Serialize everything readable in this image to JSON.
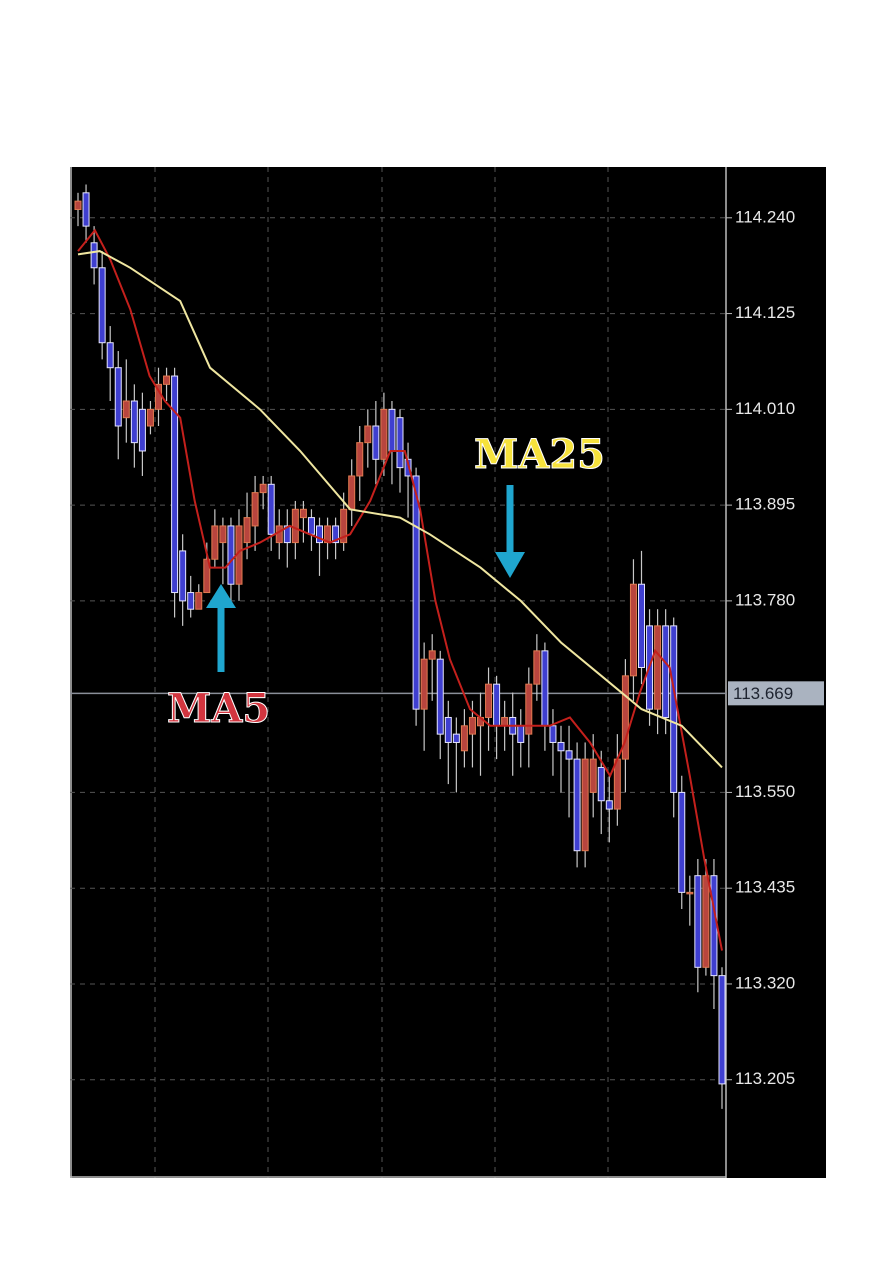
{
  "chart_data": {
    "type": "candlestick",
    "open": [
      114.25,
      114.27,
      114.21,
      114.18,
      114.09,
      114.06,
      114.0,
      114.02,
      114.01,
      113.99,
      114.01,
      114.04,
      114.05,
      113.84,
      113.79,
      113.77,
      113.79,
      113.83,
      113.85,
      113.87,
      113.8,
      113.85,
      113.87,
      113.91,
      113.92,
      113.85,
      113.87,
      113.85,
      113.88,
      113.88,
      113.87,
      113.85,
      113.87,
      113.85,
      113.89,
      113.93,
      113.97,
      113.99,
      113.95,
      114.01,
      114.0,
      113.95,
      113.93,
      113.65,
      113.71,
      113.71,
      113.64,
      113.62,
      113.6,
      113.62,
      113.63,
      113.64,
      113.68,
      113.63,
      113.64,
      113.63,
      113.62,
      113.68,
      113.72,
      113.63,
      113.61,
      113.6,
      113.59,
      113.48,
      113.55,
      113.58,
      113.54,
      113.53,
      113.59,
      113.69,
      113.8,
      113.75,
      113.65,
      113.75,
      113.75,
      113.55,
      113.43,
      113.45,
      113.34,
      113.45,
      113.33
    ],
    "high": [
      114.27,
      114.28,
      114.23,
      114.2,
      114.11,
      114.08,
      114.07,
      114.04,
      114.03,
      114.02,
      114.06,
      114.06,
      114.06,
      113.86,
      113.81,
      113.8,
      113.85,
      113.89,
      113.88,
      113.88,
      113.89,
      113.91,
      113.93,
      113.93,
      113.93,
      113.89,
      113.89,
      113.9,
      113.9,
      113.89,
      113.88,
      113.88,
      113.88,
      113.91,
      113.95,
      113.99,
      114.01,
      114.02,
      114.03,
      114.02,
      114.01,
      113.97,
      113.94,
      113.73,
      113.74,
      113.72,
      113.66,
      113.64,
      113.65,
      113.66,
      113.67,
      113.7,
      113.69,
      113.66,
      113.67,
      113.65,
      113.7,
      113.74,
      113.73,
      113.65,
      113.63,
      113.63,
      113.61,
      113.61,
      113.62,
      113.6,
      113.57,
      113.62,
      113.71,
      113.83,
      113.84,
      113.77,
      113.77,
      113.77,
      113.76,
      113.57,
      113.45,
      113.47,
      113.47,
      113.47,
      113.34
    ],
    "low": [
      114.23,
      114.21,
      114.16,
      114.07,
      114.02,
      113.95,
      113.97,
      113.94,
      113.93,
      113.98,
      113.99,
      114.02,
      113.76,
      113.75,
      113.76,
      113.77,
      113.8,
      113.82,
      113.8,
      113.78,
      113.78,
      113.83,
      113.84,
      113.89,
      113.84,
      113.83,
      113.82,
      113.83,
      113.85,
      113.84,
      113.81,
      113.83,
      113.83,
      113.84,
      113.87,
      113.9,
      113.94,
      113.92,
      113.93,
      113.92,
      113.91,
      113.88,
      113.63,
      113.6,
      113.66,
      113.59,
      113.56,
      113.55,
      113.58,
      113.58,
      113.57,
      113.6,
      113.59,
      113.6,
      113.57,
      113.58,
      113.58,
      113.66,
      113.6,
      113.57,
      113.55,
      113.52,
      113.46,
      113.46,
      113.52,
      113.5,
      113.49,
      113.51,
      113.55,
      113.66,
      113.68,
      113.63,
      113.62,
      113.62,
      113.52,
      113.41,
      113.39,
      113.31,
      113.33,
      113.29,
      113.17
    ],
    "close": [
      114.26,
      114.23,
      114.18,
      114.09,
      114.06,
      113.99,
      114.02,
      113.97,
      113.96,
      114.01,
      114.04,
      114.05,
      113.79,
      113.78,
      113.77,
      113.79,
      113.83,
      113.87,
      113.87,
      113.8,
      113.87,
      113.88,
      113.91,
      113.92,
      113.86,
      113.87,
      113.85,
      113.89,
      113.89,
      113.86,
      113.85,
      113.87,
      113.85,
      113.89,
      113.93,
      113.97,
      113.99,
      113.95,
      114.01,
      113.96,
      113.94,
      113.93,
      113.65,
      113.71,
      113.72,
      113.62,
      113.61,
      113.61,
      113.63,
      113.64,
      113.64,
      113.68,
      113.63,
      113.64,
      113.62,
      113.61,
      113.68,
      113.72,
      113.63,
      113.61,
      113.6,
      113.59,
      113.48,
      113.59,
      113.59,
      113.54,
      113.53,
      113.59,
      113.69,
      113.8,
      113.7,
      113.65,
      113.75,
      113.64,
      113.55,
      113.43,
      113.43,
      113.34,
      113.45,
      113.33,
      113.2
    ],
    "bull_color": "#b8453e",
    "bear_color": "#3f3fd0",
    "moving_averages": [
      {
        "color": "#c4201c",
        "x": [
          0,
          2.1,
          4,
          6.5,
          8.9,
          10.8,
          12.7,
          14.5,
          16.4,
          18.3,
          20.1,
          22.6,
          26.3,
          28.8,
          31.3,
          33.8,
          36.3,
          38.8,
          40.6,
          42.5,
          44.4,
          46.2,
          48.7,
          51.2,
          54.9,
          58.6,
          61.1,
          63.6,
          66.1,
          67.9,
          69.8,
          71.7,
          73.5,
          76,
          77.8,
          80
        ],
        "values": [
          114.2,
          114.225,
          114.19,
          114.13,
          114.05,
          114.02,
          114.0,
          113.9,
          113.82,
          113.82,
          113.84,
          113.85,
          113.87,
          113.86,
          113.85,
          113.86,
          113.9,
          113.96,
          113.96,
          113.89,
          113.78,
          113.71,
          113.65,
          113.63,
          113.63,
          113.63,
          113.64,
          113.61,
          113.57,
          113.61,
          113.67,
          113.72,
          113.7,
          113.57,
          113.47,
          113.36
        ]
      },
      {
        "color": "#efe6a0",
        "x": [
          0,
          2.7,
          6.5,
          12.7,
          16.4,
          22.6,
          27.6,
          33.8,
          40,
          43.7,
          50,
          55,
          60,
          65,
          70,
          75,
          80
        ],
        "values": [
          114.196,
          114.2,
          114.18,
          114.14,
          114.06,
          114.01,
          113.96,
          113.89,
          113.88,
          113.86,
          113.82,
          113.78,
          113.73,
          113.69,
          113.65,
          113.63,
          113.58
        ]
      }
    ],
    "ylim": [
      113.087,
      114.301
    ],
    "yticks": [
      {
        "value": 114.24,
        "label": "114.240"
      },
      114.125,
      {
        "value": 114.01,
        "label": "114.010"
      },
      113.895,
      {
        "value": 113.78,
        "label": "113.780"
      },
      {
        "value": 113.55,
        "label": "113.550"
      },
      113.435,
      {
        "value": 113.32,
        "label": "113.320"
      },
      113.205
    ],
    "grid": true,
    "current_price": 113.669,
    "annotations": [
      {
        "text": "MA5",
        "color": "#d2353f"
      },
      {
        "text": "MA25",
        "color": "#f6e23c"
      }
    ]
  }
}
